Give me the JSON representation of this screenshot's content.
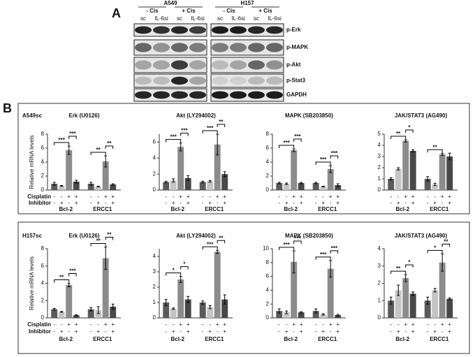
{
  "panel_a": {
    "label": "A",
    "cell_lines": [
      {
        "name": "A549",
        "treatments": [
          "- Cis",
          "+ Cis"
        ],
        "lanes": [
          "sc",
          "IL-6si",
          "sc",
          "IL-6si"
        ]
      },
      {
        "name": "H157",
        "treatments": [
          "- Cis",
          "+ Cis"
        ],
        "lanes": [
          "sc",
          "IL-6si",
          "sc",
          "IL-6si"
        ]
      }
    ],
    "proteins": [
      "p-Erk",
      "p-MAPK",
      "p-Akt",
      "p-Stat3",
      "GAPDH"
    ]
  },
  "panel_b": {
    "label": "B",
    "rows": [
      {
        "cell_line": "A549sc",
        "y_label": "Relative mRNA levels",
        "row_labels": [
          "Cisplatin",
          "Inhibitor"
        ]
      },
      {
        "cell_line": "H157sc",
        "y_label": "Relative mRNA levels",
        "row_labels": [
          "Cisplatin",
          "Inhibitor"
        ]
      }
    ]
  },
  "chart_data": [
    {
      "type": "bar",
      "title": "Erk (U0126)",
      "categories": [
        "Bcl-2",
        "ERCC1"
      ],
      "ylim": [
        0,
        8
      ],
      "yticks": [
        0,
        2,
        4,
        6,
        8
      ],
      "series": [
        {
          "color": "#5a5a5a",
          "cisplatin": "-",
          "inhibitor": "-",
          "values": [
            0.9,
            0.9
          ],
          "errors": [
            0.2,
            0.2
          ]
        },
        {
          "color": "#c4c4c4",
          "cisplatin": "-",
          "inhibitor": "+",
          "values": [
            0.6,
            0.5
          ],
          "errors": [
            0.05,
            0.05
          ]
        },
        {
          "color": "#8c8c8c",
          "cisplatin": "+",
          "inhibitor": "-",
          "values": [
            5.7,
            4.1
          ],
          "errors": [
            0.6,
            0.8
          ]
        },
        {
          "color": "#484848",
          "cisplatin": "+",
          "inhibitor": "+",
          "values": [
            1.2,
            0.8
          ],
          "errors": [
            0.2,
            0.1
          ]
        }
      ],
      "annotations": [
        {
          "text": "***",
          "group": 0,
          "from": 0,
          "to": 2
        },
        {
          "text": "***",
          "group": 0,
          "from": 2,
          "to": 3
        },
        {
          "text": "**",
          "group": 1,
          "from": 0,
          "to": 2
        },
        {
          "text": "**",
          "group": 1,
          "from": 2,
          "to": 3
        }
      ]
    },
    {
      "type": "bar",
      "title": "Akt (LY294002)",
      "categories": [
        "Bcl-2",
        "ERCC1"
      ],
      "ylim": [
        0,
        7
      ],
      "yticks": [
        0,
        2,
        4,
        6
      ],
      "series": [
        {
          "color": "#5a5a5a",
          "cisplatin": "-",
          "inhibitor": "-",
          "values": [
            1.0,
            1.0
          ],
          "errors": [
            0.1,
            0.1
          ]
        },
        {
          "color": "#c4c4c4",
          "cisplatin": "-",
          "inhibitor": "+",
          "values": [
            1.2,
            1.1
          ],
          "errors": [
            0.2,
            0.1
          ]
        },
        {
          "color": "#8c8c8c",
          "cisplatin": "+",
          "inhibitor": "-",
          "values": [
            5.4,
            5.7
          ],
          "errors": [
            0.5,
            1.3
          ]
        },
        {
          "color": "#484848",
          "cisplatin": "+",
          "inhibitor": "+",
          "values": [
            1.5,
            2.0
          ],
          "errors": [
            0.3,
            0.3
          ]
        }
      ],
      "annotations": [
        {
          "text": "***",
          "group": 0,
          "from": 0,
          "to": 2
        },
        {
          "text": "***",
          "group": 0,
          "from": 2,
          "to": 3
        },
        {
          "text": "***",
          "group": 1,
          "from": 0,
          "to": 2
        },
        {
          "text": "**",
          "group": 1,
          "from": 2,
          "to": 3
        }
      ]
    },
    {
      "type": "bar",
      "title": "MAPK (SB203850)",
      "categories": [
        "Bcl-2",
        "ERCC1"
      ],
      "ylim": [
        0,
        8
      ],
      "yticks": [
        0,
        2,
        4,
        6,
        8
      ],
      "series": [
        {
          "color": "#5a5a5a",
          "cisplatin": "-",
          "inhibitor": "-",
          "values": [
            1.0,
            1.0
          ],
          "errors": [
            0.1,
            0.1
          ]
        },
        {
          "color": "#c4c4c4",
          "cisplatin": "-",
          "inhibitor": "+",
          "values": [
            0.9,
            0.5
          ],
          "errors": [
            0.1,
            0.05
          ]
        },
        {
          "color": "#8c8c8c",
          "cisplatin": "+",
          "inhibitor": "-",
          "values": [
            5.7,
            3.0
          ],
          "errors": [
            0.2,
            0.5
          ]
        },
        {
          "color": "#484848",
          "cisplatin": "+",
          "inhibitor": "+",
          "values": [
            1.0,
            0.7
          ],
          "errors": [
            0.1,
            0.2
          ]
        }
      ],
      "annotations": [
        {
          "text": "***",
          "group": 0,
          "from": 0,
          "to": 2
        },
        {
          "text": "***",
          "group": 0,
          "from": 2,
          "to": 3
        },
        {
          "text": "***",
          "group": 1,
          "from": 0,
          "to": 2
        },
        {
          "text": "***",
          "group": 1,
          "from": 2,
          "to": 3
        }
      ]
    },
    {
      "type": "bar",
      "title": "JAK/STAT3 (AG490)",
      "categories": [
        "Bcl-2",
        "ERCC1"
      ],
      "ylim": [
        0,
        5
      ],
      "yticks": [
        0,
        1,
        2,
        3,
        4,
        5
      ],
      "series": [
        {
          "color": "#5a5a5a",
          "cisplatin": "-",
          "inhibitor": "-",
          "values": [
            1.0,
            1.0
          ],
          "errors": [
            0.1,
            0.2
          ]
        },
        {
          "color": "#c4c4c4",
          "cisplatin": "-",
          "inhibitor": "+",
          "values": [
            1.9,
            0.5
          ],
          "errors": [
            0.1,
            0.1
          ]
        },
        {
          "color": "#8c8c8c",
          "cisplatin": "+",
          "inhibitor": "-",
          "values": [
            4.4,
            3.2
          ],
          "errors": [
            0.1,
            0.1
          ]
        },
        {
          "color": "#484848",
          "cisplatin": "+",
          "inhibitor": "+",
          "values": [
            3.5,
            3.0
          ],
          "errors": [
            0.1,
            0.3
          ]
        }
      ],
      "annotations": [
        {
          "text": "**",
          "group": 0,
          "from": 0,
          "to": 2
        },
        {
          "text": "*",
          "group": 0,
          "from": 2,
          "to": 3
        },
        {
          "text": "**",
          "group": 1,
          "from": 0,
          "to": 2
        }
      ]
    },
    {
      "type": "bar",
      "title": "Erk (U0126)",
      "categories": [
        "Bcl-2",
        "ERCC1"
      ],
      "ylim": [
        0,
        8
      ],
      "yticks": [
        0,
        2,
        4,
        6,
        8
      ],
      "series": [
        {
          "color": "#5a5a5a",
          "cisplatin": "-",
          "inhibitor": "-",
          "values": [
            1.0,
            1.0
          ],
          "errors": [
            0.1,
            0.2
          ]
        },
        {
          "color": "#c4c4c4",
          "cisplatin": "-",
          "inhibitor": "+",
          "values": [
            0.7,
            0.9
          ],
          "errors": [
            0.05,
            0.4
          ]
        },
        {
          "color": "#8c8c8c",
          "cisplatin": "+",
          "inhibitor": "-",
          "values": [
            3.8,
            6.9
          ],
          "errors": [
            0.2,
            1.3
          ]
        },
        {
          "color": "#484848",
          "cisplatin": "+",
          "inhibitor": "+",
          "values": [
            0.3,
            1.3
          ],
          "errors": [
            0.05,
            0.3
          ]
        }
      ],
      "annotations": [
        {
          "text": "**",
          "group": 0,
          "from": 0,
          "to": 2
        },
        {
          "text": "***",
          "group": 0,
          "from": 2,
          "to": 3
        },
        {
          "text": "**",
          "group": 1,
          "from": 0,
          "to": 2
        },
        {
          "text": "**",
          "group": 1,
          "from": 2,
          "to": 3
        }
      ]
    },
    {
      "type": "bar",
      "title": "Akt (LY294002)",
      "categories": [
        "Bcl-2",
        "ERCC1"
      ],
      "ylim": [
        0,
        4.5
      ],
      "yticks": [
        0,
        1,
        2,
        3,
        4
      ],
      "series": [
        {
          "color": "#5a5a5a",
          "cisplatin": "-",
          "inhibitor": "-",
          "values": [
            1.0,
            1.0
          ],
          "errors": [
            0.2,
            0.1
          ]
        },
        {
          "color": "#c4c4c4",
          "cisplatin": "-",
          "inhibitor": "+",
          "values": [
            0.6,
            0.7
          ],
          "errors": [
            0.05,
            0.1
          ]
        },
        {
          "color": "#8c8c8c",
          "cisplatin": "+",
          "inhibitor": "-",
          "values": [
            2.5,
            4.3
          ],
          "errors": [
            0.2,
            0.1
          ]
        },
        {
          "color": "#484848",
          "cisplatin": "+",
          "inhibitor": "+",
          "values": [
            1.2,
            1.2
          ],
          "errors": [
            0.2,
            0.3
          ]
        }
      ],
      "annotations": [
        {
          "text": "*",
          "group": 0,
          "from": 0,
          "to": 2
        },
        {
          "text": "*",
          "group": 0,
          "from": 2,
          "to": 3
        },
        {
          "text": "***",
          "group": 1,
          "from": 0,
          "to": 2
        },
        {
          "text": "**",
          "group": 1,
          "from": 2,
          "to": 3
        }
      ]
    },
    {
      "type": "bar",
      "title": "MAPK (SB203850)",
      "categories": [
        "Bcl-2",
        "ERCC1"
      ],
      "ylim": [
        0,
        10
      ],
      "yticks": [
        0,
        2,
        4,
        6,
        8,
        10
      ],
      "series": [
        {
          "color": "#5a5a5a",
          "cisplatin": "-",
          "inhibitor": "-",
          "values": [
            1.0,
            1.0
          ],
          "errors": [
            0.3,
            0.3
          ]
        },
        {
          "color": "#c4c4c4",
          "cisplatin": "-",
          "inhibitor": "+",
          "values": [
            0.8,
            0.5
          ],
          "errors": [
            0.2,
            0.1
          ]
        },
        {
          "color": "#8c8c8c",
          "cisplatin": "+",
          "inhibitor": "-",
          "values": [
            8.1,
            7.1
          ],
          "errors": [
            1.6,
            1.2
          ]
        },
        {
          "color": "#484848",
          "cisplatin": "+",
          "inhibitor": "+",
          "values": [
            0.8,
            0.4
          ],
          "errors": [
            0.1,
            0.1
          ]
        }
      ],
      "annotations": [
        {
          "text": "***",
          "group": 0,
          "from": 0,
          "to": 2
        },
        {
          "text": "***",
          "group": 0,
          "from": 2,
          "to": 3
        },
        {
          "text": "***",
          "group": 1,
          "from": 0,
          "to": 2
        },
        {
          "text": "***",
          "group": 1,
          "from": 2,
          "to": 3
        }
      ]
    },
    {
      "type": "bar",
      "title": "JAK/STAT3 (AG490)",
      "categories": [
        "Bcl-2",
        "ERCC1"
      ],
      "ylim": [
        0,
        4
      ],
      "yticks": [
        0,
        1,
        2,
        3,
        4
      ],
      "series": [
        {
          "color": "#5a5a5a",
          "cisplatin": "-",
          "inhibitor": "-",
          "values": [
            1.0,
            1.0
          ],
          "errors": [
            0.2,
            0.2
          ]
        },
        {
          "color": "#c4c4c4",
          "cisplatin": "-",
          "inhibitor": "+",
          "values": [
            1.6,
            1.6
          ],
          "errors": [
            0.3,
            0.1
          ]
        },
        {
          "color": "#8c8c8c",
          "cisplatin": "+",
          "inhibitor": "-",
          "values": [
            2.3,
            3.2
          ],
          "errors": [
            0.2,
            0.5
          ]
        },
        {
          "color": "#484848",
          "cisplatin": "+",
          "inhibitor": "+",
          "values": [
            1.4,
            1.1
          ],
          "errors": [
            0.1,
            0.05
          ]
        }
      ],
      "annotations": [
        {
          "text": "**",
          "group": 0,
          "from": 0,
          "to": 2
        },
        {
          "text": "*",
          "group": 0,
          "from": 2,
          "to": 3
        },
        {
          "text": "*",
          "group": 1,
          "from": 0,
          "to": 2
        },
        {
          "text": "**",
          "group": 1,
          "from": 2,
          "to": 3
        }
      ]
    }
  ]
}
